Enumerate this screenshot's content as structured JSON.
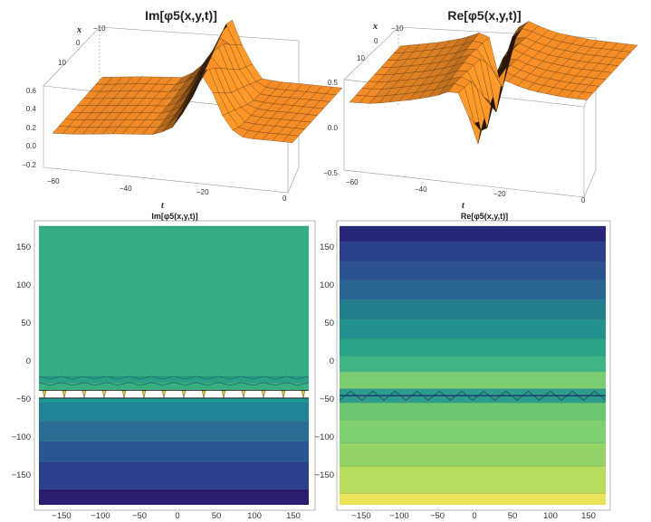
{
  "chart_data": [
    {
      "type": "surface",
      "title": "Im[φ5(x,y,t)]",
      "xlabel": "t",
      "ylabel": "x",
      "t_range": [
        -60,
        0
      ],
      "x_range": [
        -10,
        10
      ],
      "z_range": [
        -0.2,
        0.6
      ],
      "t_ticks": [
        "−60",
        "−40",
        "−20",
        "0"
      ],
      "x_ticks": [
        "10",
        "0",
        "−10"
      ],
      "z_ticks": [
        "0.6",
        "0.4",
        "0.2",
        "0.0",
        "−0.2"
      ],
      "profile_t": [
        -60,
        -50,
        -40,
        -36,
        -32,
        -28,
        -24,
        -20,
        -16,
        -10,
        -5,
        0
      ],
      "profile_z": [
        -0.05,
        -0.03,
        -0.02,
        0.05,
        0.25,
        0.55,
        0.2,
        0.0,
        -0.02,
        -0.03,
        -0.04,
        -0.05
      ]
    },
    {
      "type": "surface",
      "title": "Re[φ5(x,y,t)]",
      "xlabel": "t",
      "ylabel": "x",
      "t_range": [
        -60,
        0
      ],
      "x_range": [
        -10,
        10
      ],
      "z_range": [
        -0.5,
        0.5
      ],
      "t_ticks": [
        "−60",
        "−40",
        "−20",
        "0"
      ],
      "x_ticks": [
        "10",
        "0",
        "−10"
      ],
      "z_ticks": [
        "0.5",
        "0.0",
        "−0.5"
      ],
      "profile_t": [
        -60,
        -50,
        -44,
        -40,
        -37,
        -34,
        -31,
        -28,
        -24,
        -20,
        -12,
        0
      ],
      "profile_z": [
        0.05,
        0.12,
        0.18,
        0.25,
        0.2,
        -0.45,
        0.3,
        0.42,
        0.35,
        0.3,
        0.25,
        0.22
      ]
    },
    {
      "type": "contour",
      "title": "Im[φ5(x,y,t)]",
      "x_range": [
        -180,
        180
      ],
      "y_range": [
        -180,
        180
      ],
      "x_ticks": [
        "−150",
        "−100",
        "−50",
        "0",
        "50",
        "100",
        "150"
      ],
      "y_ticks": [
        "150",
        "100",
        "50",
        "0",
        "−50",
        "−100",
        "−150"
      ],
      "bands": [
        {
          "y0": -180,
          "y1": -160,
          "color": "#2b1c70"
        },
        {
          "y0": -160,
          "y1": -125,
          "color": "#2d3e8d"
        },
        {
          "y0": -125,
          "y1": -98,
          "color": "#2a5693"
        },
        {
          "y0": -98,
          "y1": -72,
          "color": "#2a6e95"
        },
        {
          "y0": -72,
          "y1": -48,
          "color": "#218494"
        },
        {
          "y0": -48,
          "y1": -42,
          "color": "#1f9691"
        },
        {
          "y0": -42,
          "y1": -32,
          "color": "#ffffff"
        },
        {
          "y0": -32,
          "y1": -22,
          "color": "#3bb07e"
        },
        {
          "y0": -22,
          "y1": -14,
          "color": "#2ba083"
        },
        {
          "y0": -14,
          "y1": 180,
          "color": "#35ad84"
        }
      ]
    },
    {
      "type": "contour",
      "title": "Re[φ5(x,y,t)]",
      "x_range": [
        -180,
        180
      ],
      "y_range": [
        -180,
        180
      ],
      "x_ticks": [
        "−150",
        "−100",
        "−50",
        "0",
        "50",
        "100",
        "150"
      ],
      "y_ticks": [
        "150",
        "100",
        "50",
        "0",
        "−50",
        "−100",
        "−150"
      ],
      "bands": [
        {
          "y0": -180,
          "y1": -165,
          "color": "#e9e35a"
        },
        {
          "y0": -165,
          "y1": -130,
          "color": "#b8dc5c"
        },
        {
          "y0": -130,
          "y1": -100,
          "color": "#93d468"
        },
        {
          "y0": -100,
          "y1": -70,
          "color": "#7dcf70"
        },
        {
          "y0": -70,
          "y1": -48,
          "color": "#6cc773"
        },
        {
          "y0": -48,
          "y1": -30,
          "color": "#2c9c8b"
        },
        {
          "y0": -30,
          "y1": -8,
          "color": "#7bcd72"
        },
        {
          "y0": -8,
          "y1": 12,
          "color": "#3db582"
        },
        {
          "y0": 12,
          "y1": 35,
          "color": "#2aa486"
        },
        {
          "y0": 35,
          "y1": 60,
          "color": "#23918d"
        },
        {
          "y0": 60,
          "y1": 85,
          "color": "#237d8f"
        },
        {
          "y0": 85,
          "y1": 110,
          "color": "#286791"
        },
        {
          "y0": 110,
          "y1": 135,
          "color": "#2b5392"
        },
        {
          "y0": 135,
          "y1": 160,
          "color": "#2c3f8a"
        },
        {
          "y0": 160,
          "y1": 180,
          "color": "#27287a"
        }
      ]
    }
  ]
}
